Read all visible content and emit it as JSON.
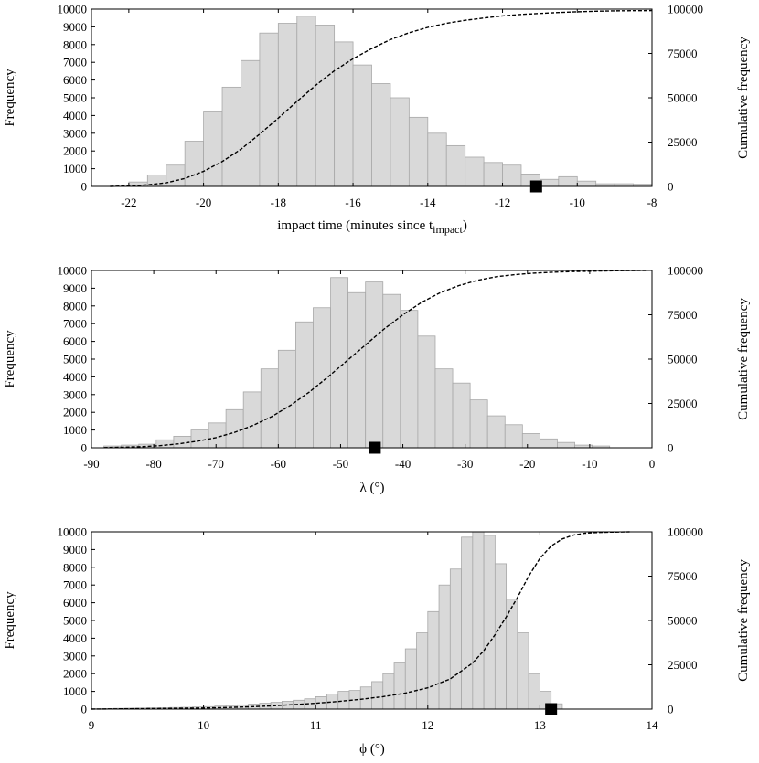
{
  "chart_data": [
    {
      "type": "bar",
      "title": "",
      "xlabel": "impact time (minutes since t",
      "xlabel_sub": "impact",
      "xlabel_end": ")",
      "ylabel": "Frequency",
      "ylabel2": "Cumulative frequency",
      "xlim": [
        -23,
        -8
      ],
      "ylim": [
        0,
        10000
      ],
      "y2lim": [
        0,
        100000
      ],
      "xticks": [
        -22,
        -20,
        -18,
        -16,
        -14,
        -12,
        -10,
        -8
      ],
      "yticks": [
        0,
        1000,
        2000,
        3000,
        4000,
        5000,
        6000,
        7000,
        8000,
        9000,
        10000
      ],
      "y2ticks": [
        0,
        25000,
        50000,
        75000,
        100000
      ],
      "bin_start": -23,
      "bin_width": 0.5,
      "values": [
        0,
        0,
        250,
        650,
        1200,
        2550,
        4200,
        5600,
        7100,
        8650,
        9200,
        9600,
        9100,
        8150,
        6850,
        5800,
        5000,
        3900,
        3000,
        2300,
        1650,
        1350,
        1200,
        700,
        400,
        550,
        300,
        150,
        150,
        120
      ],
      "cumulative_x": [
        -22.5,
        -22,
        -21.5,
        -21,
        -20.5,
        -20,
        -19.5,
        -19,
        -18.5,
        -18,
        -17.5,
        -17,
        -16.5,
        -16,
        -15.5,
        -15,
        -14.5,
        -14,
        -13.5,
        -13,
        -12.5,
        -12,
        -11.5,
        -11,
        -10.5,
        -10,
        -9.5,
        -9,
        -8.5,
        -8
      ],
      "cumulative_y": [
        0,
        300,
        900,
        2000,
        4500,
        8500,
        14000,
        21000,
        29500,
        38500,
        48000,
        57000,
        65200,
        72000,
        77800,
        82800,
        86700,
        89700,
        92000,
        93700,
        95000,
        96200,
        97000,
        97600,
        98100,
        98500,
        98800,
        99000,
        99100,
        99200
      ],
      "marker": {
        "x": -11.1,
        "y": 0
      }
    },
    {
      "type": "bar",
      "title": "",
      "xlabel": "λ (°)",
      "ylabel": "Frequency",
      "ylabel2": "Cumulative frequency",
      "xlim": [
        -90,
        0
      ],
      "ylim": [
        0,
        10000
      ],
      "y2lim": [
        0,
        100000
      ],
      "xticks": [
        -90,
        -80,
        -70,
        -60,
        -50,
        -40,
        -30,
        -20,
        -10,
        0
      ],
      "yticks": [
        0,
        1000,
        2000,
        3000,
        4000,
        5000,
        6000,
        7000,
        8000,
        9000,
        10000
      ],
      "y2ticks": [
        0,
        25000,
        50000,
        75000,
        100000
      ],
      "bin_start": -88,
      "bin_width": 2.8,
      "values": [
        100,
        150,
        200,
        450,
        650,
        1000,
        1400,
        2150,
        3150,
        4450,
        5500,
        7100,
        7900,
        9600,
        8750,
        9350,
        8650,
        7750,
        6300,
        4450,
        3650,
        2700,
        1800,
        1300,
        800,
        500,
        300,
        150,
        100,
        0
      ],
      "cumulative_x": [
        -88,
        -85,
        -82,
        -79,
        -76,
        -73,
        -70,
        -67,
        -64,
        -61,
        -58,
        -55,
        -52,
        -49,
        -46,
        -43,
        -40,
        -37,
        -34,
        -31,
        -28,
        -25,
        -22,
        -19,
        -16,
        -13,
        -10,
        -7,
        -4,
        -1
      ],
      "cumulative_y": [
        100,
        300,
        600,
        1200,
        2200,
        3700,
        5700,
        8700,
        12700,
        17700,
        24000,
        31500,
        40000,
        49000,
        58000,
        67000,
        75000,
        82000,
        87500,
        91500,
        94500,
        96500,
        97700,
        98500,
        99000,
        99400,
        99600,
        99800,
        99900,
        100000
      ],
      "marker": {
        "x": -44.5,
        "y": 0
      }
    },
    {
      "type": "bar",
      "title": "",
      "xlabel": "ϕ (°)",
      "ylabel": "Frequency",
      "ylabel2": "Cumulative frequency",
      "xlim": [
        9,
        14
      ],
      "ylim": [
        0,
        10000
      ],
      "y2lim": [
        0,
        100000
      ],
      "xticks": [
        9,
        10,
        11,
        12,
        13,
        14
      ],
      "yticks": [
        0,
        1000,
        2000,
        3000,
        4000,
        5000,
        6000,
        7000,
        8000,
        9000,
        10000
      ],
      "y2ticks": [
        0,
        25000,
        50000,
        75000,
        100000
      ],
      "bin_start": 9.0,
      "bin_width": 0.1,
      "values": [
        20,
        30,
        40,
        50,
        60,
        70,
        80,
        90,
        100,
        120,
        140,
        170,
        200,
        240,
        280,
        330,
        380,
        440,
        500,
        580,
        700,
        850,
        1000,
        1050,
        1250,
        1550,
        2000,
        2600,
        3400,
        4300,
        5500,
        7000,
        7900,
        9700,
        10000,
        9800,
        8200,
        6200,
        4300,
        2000,
        1000,
        300
      ],
      "cumulative_x": [
        9.0,
        9.2,
        9.4,
        9.6,
        9.8,
        10.0,
        10.2,
        10.4,
        10.6,
        10.8,
        11.0,
        11.2,
        11.4,
        11.6,
        11.8,
        12.0,
        12.2,
        12.4,
        12.5,
        12.6,
        12.7,
        12.8,
        12.9,
        13.0,
        13.1,
        13.2,
        13.3,
        13.4,
        13.5,
        13.6,
        13.7,
        13.8
      ],
      "cumulative_y": [
        0,
        100,
        200,
        300,
        450,
        600,
        900,
        1300,
        1800,
        2500,
        3300,
        4300,
        5500,
        7000,
        9000,
        12000,
        17000,
        26000,
        33000,
        42000,
        52000,
        63000,
        75000,
        85000,
        92000,
        96000,
        98200,
        99200,
        99600,
        99800,
        99900,
        100000
      ],
      "marker": {
        "x": 13.1,
        "y": 0
      }
    }
  ]
}
